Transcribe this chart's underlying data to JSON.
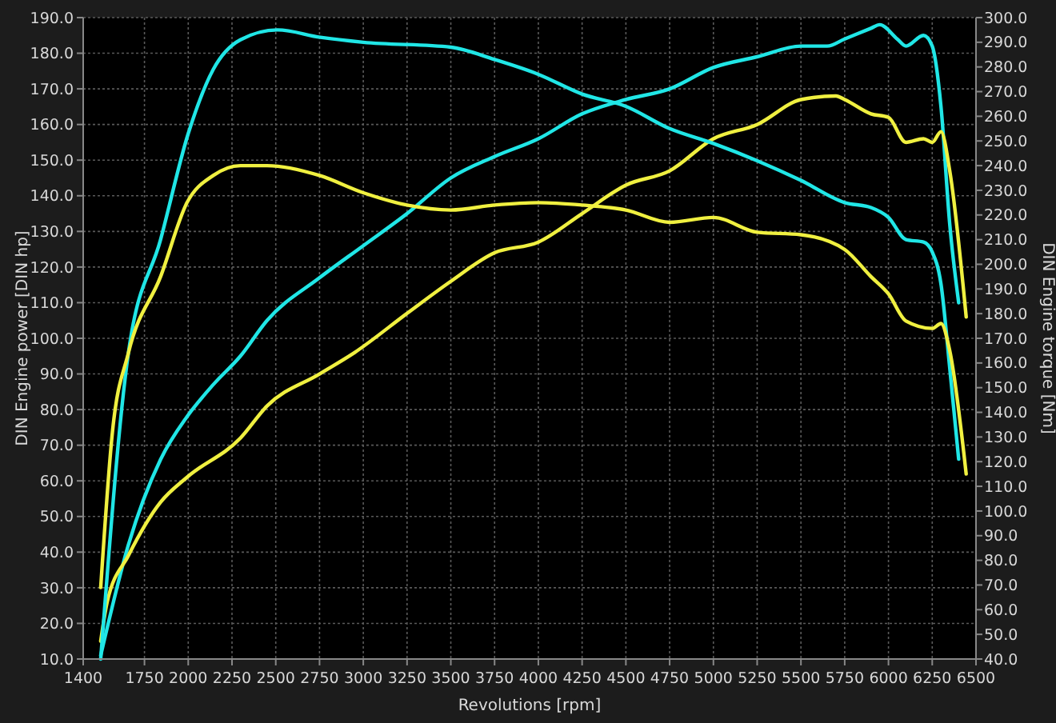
{
  "chart_data": {
    "type": "line",
    "xlabel": "Revolutions [rpm]",
    "ylabel": "DIN Engine power [DIN hp]",
    "y2label": "DIN Engine torque [Nm]",
    "xlim": [
      1400,
      6500
    ],
    "xticks": [
      1400,
      1750,
      2000,
      2250,
      2500,
      2750,
      3000,
      3250,
      3500,
      3750,
      4000,
      4250,
      4500,
      4750,
      5000,
      5250,
      5500,
      5750,
      6000,
      6250,
      6500
    ],
    "ylim": [
      10,
      190
    ],
    "yticks": [
      {
        "value": 10,
        "label": "10.0"
      },
      {
        "value": 20,
        "label": "20.0"
      },
      {
        "value": 30,
        "label": "30.0"
      },
      {
        "value": 40,
        "label": "40.0"
      },
      {
        "value": 50,
        "label": "50.0"
      },
      {
        "value": 60,
        "label": "60.0"
      },
      {
        "value": 70,
        "label": "70.0"
      },
      {
        "value": 80,
        "label": "80.0"
      },
      {
        "value": 90,
        "label": "90.0"
      },
      {
        "value": 100,
        "label": "100.0"
      },
      {
        "value": 110,
        "label": "110.0"
      },
      {
        "value": 120,
        "label": "120.0"
      },
      {
        "value": 130,
        "label": "130.0"
      },
      {
        "value": 140,
        "label": "140.0"
      },
      {
        "value": 150,
        "label": "150.0"
      },
      {
        "value": 160,
        "label": "160.0"
      },
      {
        "value": 170,
        "label": "170.0"
      },
      {
        "value": 180,
        "label": "180.0"
      },
      {
        "value": 190,
        "label": "190.0"
      }
    ],
    "y2lim": [
      40,
      300
    ],
    "y2ticks": [
      {
        "value": 40,
        "label": "40.0"
      },
      {
        "value": 50,
        "label": "50.0"
      },
      {
        "value": 60,
        "label": "60.0"
      },
      {
        "value": 70,
        "label": "70.0"
      },
      {
        "value": 80,
        "label": "80.0"
      },
      {
        "value": 90,
        "label": "90.0"
      },
      {
        "value": 100,
        "label": "100.0"
      },
      {
        "value": 110,
        "label": "110.0"
      },
      {
        "value": 120,
        "label": "120.0"
      },
      {
        "value": 130,
        "label": "130.0"
      },
      {
        "value": 140,
        "label": "140.0"
      },
      {
        "value": 150,
        "label": "150.0"
      },
      {
        "value": 160,
        "label": "160.0"
      },
      {
        "value": 170,
        "label": "170.0"
      },
      {
        "value": 180,
        "label": "180.0"
      },
      {
        "value": 190,
        "label": "190.0"
      },
      {
        "value": 200,
        "label": "200.0"
      },
      {
        "value": 210,
        "label": "210.0"
      },
      {
        "value": 220,
        "label": "220.0"
      },
      {
        "value": 230,
        "label": "230.0"
      },
      {
        "value": 240,
        "label": "240.0"
      },
      {
        "value": 250,
        "label": "250.0"
      },
      {
        "value": 260,
        "label": "260.0"
      },
      {
        "value": 270,
        "label": "270.0"
      },
      {
        "value": 280,
        "label": "280.0"
      },
      {
        "value": 290,
        "label": "290.0"
      },
      {
        "value": 300,
        "label": "300.0"
      }
    ],
    "grid": true,
    "series": [
      {
        "color": "#20e6e6",
        "x": [
          1500,
          1658,
          1842,
          1993,
          2143,
          2298,
          2450,
          2750,
          3000,
          3250,
          3500,
          3750,
          4000,
          4250,
          4500,
          4750,
          5000,
          5250,
          5500,
          5650,
          5750,
          5900,
          5950,
          6050,
          6100,
          6200,
          6250,
          6300,
          6350,
          6401
        ],
        "values": [
          11,
          42,
          66,
          78,
          87,
          95,
          105,
          117,
          126,
          135,
          145,
          151,
          156,
          163,
          167,
          170,
          176,
          179,
          182,
          182,
          184,
          187,
          188,
          184,
          182,
          185,
          182,
          165,
          132,
          110
        ]
      },
      {
        "color": "#f0f040",
        "x": [
          1500,
          1537,
          1658,
          1842,
          1993,
          2298,
          2450,
          2750,
          2950,
          3250,
          3500,
          3750,
          4000,
          4250,
          4500,
          4750,
          5000,
          5250,
          5500,
          5700,
          5750,
          5900,
          6000,
          6100,
          6200,
          6250,
          6300,
          6350,
          6444
        ],
        "values": [
          15,
          26,
          39,
          54,
          61,
          72,
          81,
          90,
          96,
          107,
          116,
          124,
          127,
          135,
          143,
          147,
          156,
          160,
          167,
          168,
          167,
          163,
          162,
          155,
          156,
          155,
          158,
          147,
          106
        ]
      },
      {
        "color": "#20e6e6",
        "axis": "y2",
        "x": [
          1500,
          1658,
          1842,
          2000,
          2143,
          2298,
          2510,
          2755,
          3000,
          3500,
          3750,
          4000,
          4250,
          4500,
          4750,
          5000,
          5250,
          5500,
          5750,
          5900,
          6000,
          6100,
          6200,
          6250,
          6300,
          6350,
          6401
        ],
        "values": [
          40,
          164,
          210,
          253,
          279,
          291,
          295,
          292,
          290,
          288,
          283,
          277,
          269,
          264,
          255,
          249,
          242,
          234,
          225,
          223,
          219,
          210,
          209,
          205,
          192,
          158,
          121
        ]
      },
      {
        "color": "#f0f040",
        "axis": "y2",
        "x": [
          1500,
          1567,
          1658,
          1842,
          1993,
          2143,
          2298,
          2450,
          2750,
          3000,
          3250,
          3500,
          3750,
          4000,
          4250,
          4500,
          4750,
          5000,
          5250,
          5500,
          5750,
          5900,
          6000,
          6100,
          6250,
          6300,
          6350,
          6444
        ],
        "values": [
          69,
          132,
          164,
          195,
          225,
          236,
          240,
          240,
          236,
          229,
          224,
          222,
          224,
          225,
          224,
          222,
          217,
          219,
          213,
          212,
          206,
          195,
          188,
          177,
          174,
          176,
          165,
          115
        ]
      }
    ]
  }
}
